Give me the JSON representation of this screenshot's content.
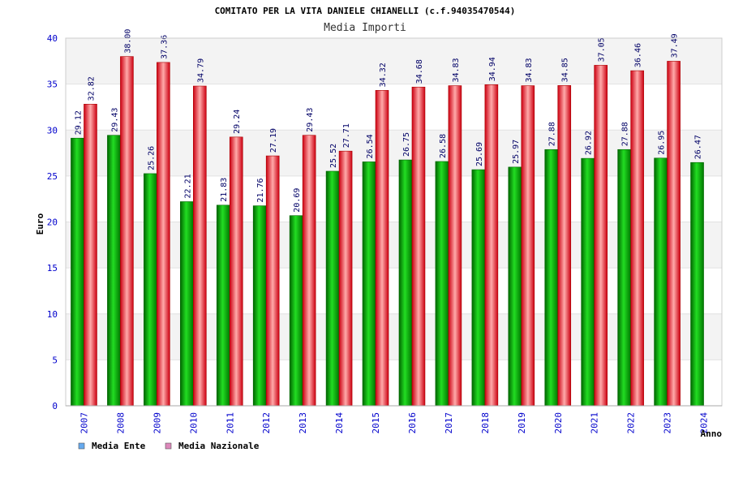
{
  "chart_data": {
    "type": "bar",
    "title": "COMITATO PER LA VITA DANIELE CHIANELLI (c.f.94035470544)",
    "subtitle": "Media Importi",
    "xlabel": "Anno",
    "ylabel": "Euro",
    "ylim": [
      0,
      40
    ],
    "yticks": [
      0,
      5,
      10,
      15,
      20,
      25,
      30,
      35,
      40
    ],
    "grid": true,
    "legend_position": "bottom-left",
    "categories": [
      "2007",
      "2008",
      "2009",
      "2010",
      "2011",
      "2012",
      "2013",
      "2014",
      "2015",
      "2016",
      "2017",
      "2018",
      "2019",
      "2020",
      "2021",
      "2022",
      "2023",
      "2024"
    ],
    "series": [
      {
        "name": "Media Ente",
        "legend_color": "#66aaee",
        "bar_color": "#00aa00",
        "values": [
          29.12,
          29.43,
          25.26,
          22.21,
          21.83,
          21.76,
          20.69,
          25.52,
          26.54,
          26.75,
          26.58,
          25.69,
          25.97,
          27.88,
          26.92,
          27.88,
          26.95,
          26.47
        ]
      },
      {
        "name": "Media Nazionale",
        "legend_color": "#dd88bb",
        "bar_color": "#ee2233",
        "values": [
          32.82,
          38.0,
          37.36,
          34.79,
          29.24,
          27.19,
          29.43,
          27.71,
          34.32,
          34.68,
          34.83,
          34.94,
          34.83,
          34.85,
          37.05,
          36.46,
          37.49,
          null
        ]
      }
    ],
    "value_labels": [
      [
        "29.12",
        "29.43",
        "25.26",
        "22.21",
        "21.83",
        "21.76",
        "20.69",
        "25.52",
        "26.54",
        "26.75",
        "26.58",
        "25.69",
        "25.97",
        "27.88",
        "26.92",
        "27.88",
        "26.95",
        "26.47"
      ],
      [
        "32.82",
        "38.00",
        "37.36",
        "34.79",
        "29.24",
        "27.19",
        "29.43",
        "27.71",
        "34.32",
        "34.68",
        "34.83",
        "34.94",
        "34.83",
        "34.85",
        "37.05",
        "36.46",
        "37.49",
        null
      ]
    ]
  }
}
